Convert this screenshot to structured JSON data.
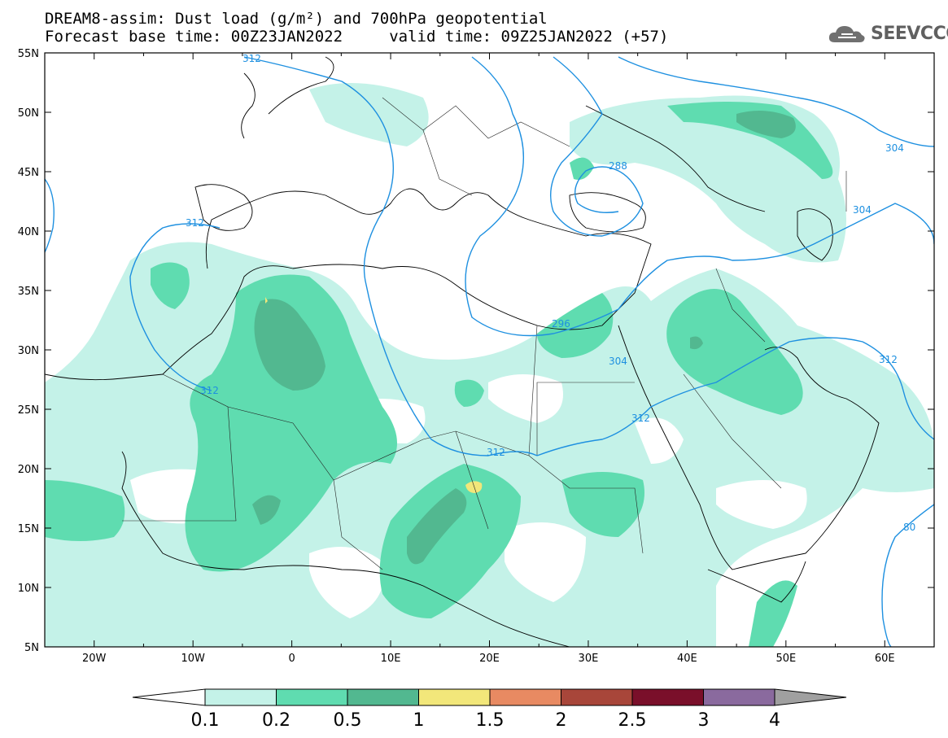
{
  "title": {
    "line1": "DREAM8-assim: Dust load (g/m²) and 700hPa geopotential",
    "line2": "Forecast base time: 00Z23JAN2022     valid time: 09Z25JAN2022 (+57)"
  },
  "logo": {
    "text": "SEEVCCC",
    "icon": "cloud-icon"
  },
  "map": {
    "lon_range": [
      -25,
      65
    ],
    "lat_range": [
      5,
      55
    ],
    "x_ticks": [
      "20W",
      "10W",
      "0",
      "10E",
      "20E",
      "30E",
      "40E",
      "50E",
      "60E"
    ],
    "y_ticks": [
      "55N",
      "50N",
      "45N",
      "40N",
      "35N",
      "30N",
      "25N",
      "20N",
      "15N",
      "10N",
      "5N"
    ],
    "contour_color": "#1e90e0",
    "contour_labels": [
      "312",
      "288",
      "304",
      "304",
      "312",
      "296",
      "304",
      "312",
      "312",
      "312",
      "312",
      "80"
    ]
  },
  "colorbar": {
    "labels": [
      "0.1",
      "0.2",
      "0.5",
      "1",
      "1.5",
      "2",
      "2.5",
      "3",
      "4"
    ],
    "colors": [
      "#c4f2e8",
      "#5fdcb0",
      "#52b890",
      "#f2e77a",
      "#e88a62",
      "#a8463a",
      "#7a0f2a",
      "#8a6a9e",
      "#a0a0a0"
    ],
    "left_extension_color": "#ffffff",
    "right_extension_color": "#a0a0a0"
  }
}
